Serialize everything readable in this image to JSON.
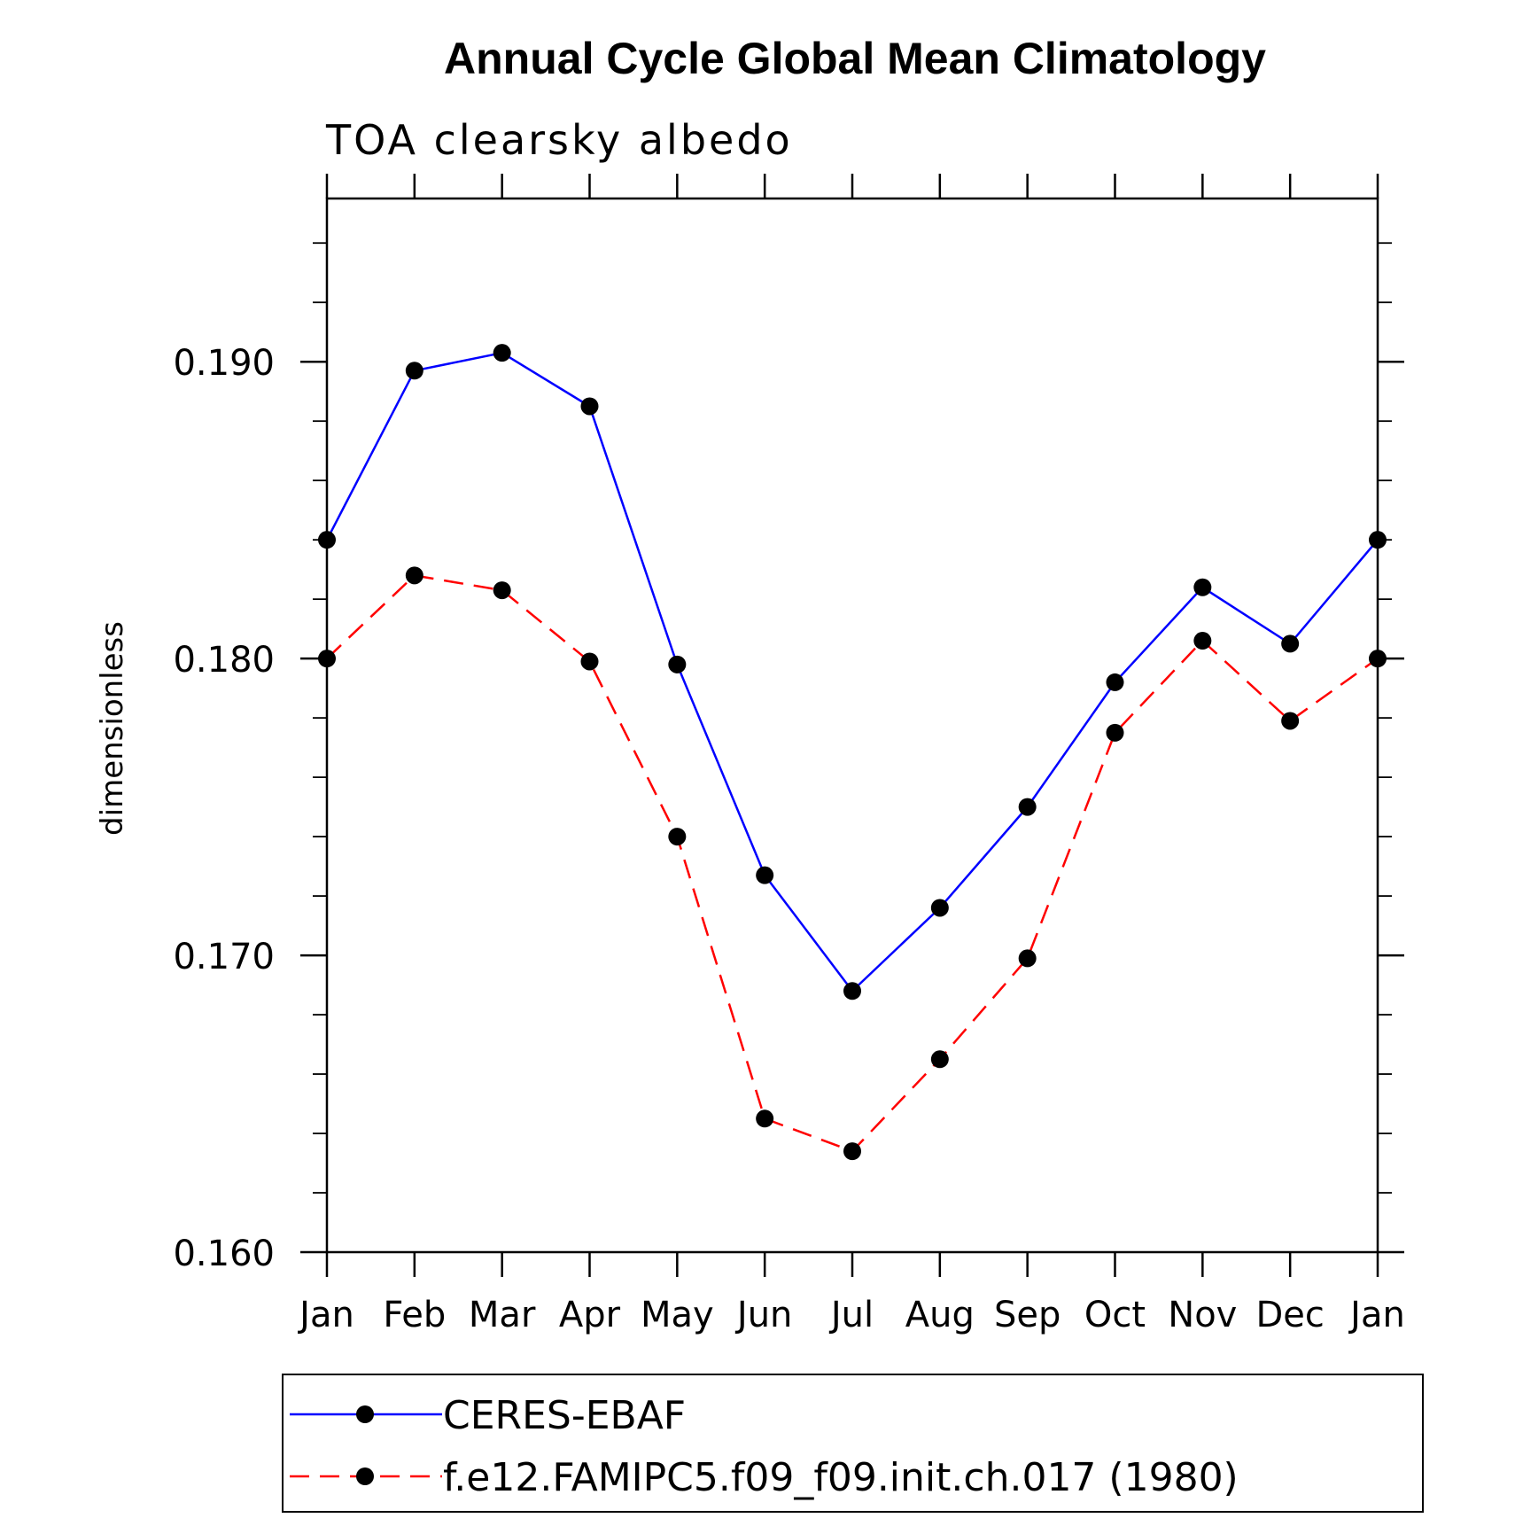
{
  "chart_data": {
    "type": "line",
    "title": "Annual Cycle Global Mean Climatology",
    "subtitle": "TOA clearsky albedo",
    "ylabel": "dimensionless",
    "xlabel": "",
    "categories": [
      "Jan",
      "Feb",
      "Mar",
      "Apr",
      "May",
      "Jun",
      "Jul",
      "Aug",
      "Sep",
      "Oct",
      "Nov",
      "Dec",
      "Jan"
    ],
    "ylim": [
      0.16,
      0.1955
    ],
    "yticks": [
      0.16,
      0.17,
      0.18,
      0.19
    ],
    "ytick_labels": [
      "0.160",
      "0.170",
      "0.180",
      "0.190"
    ],
    "yminor_step": 0.002,
    "series": [
      {
        "name": "CERES-EBAF",
        "color": "#0000ff",
        "dash": "solid",
        "values": [
          0.184,
          0.1897,
          0.1903,
          0.1885,
          0.1798,
          0.1727,
          0.1688,
          0.1716,
          0.175,
          0.1792,
          0.1824,
          0.1805,
          0.184
        ]
      },
      {
        "name": "f.e12.FAMIPC5.f09_f09.init.ch.017 (1980)",
        "color": "#ff0000",
        "dash": "dashed",
        "values": [
          0.18,
          0.1828,
          0.1823,
          0.1799,
          0.174,
          0.1645,
          0.1634,
          0.1665,
          0.1699,
          0.1775,
          0.1806,
          0.1779,
          0.18
        ]
      }
    ],
    "legend_position": "bottom",
    "grid": false
  }
}
